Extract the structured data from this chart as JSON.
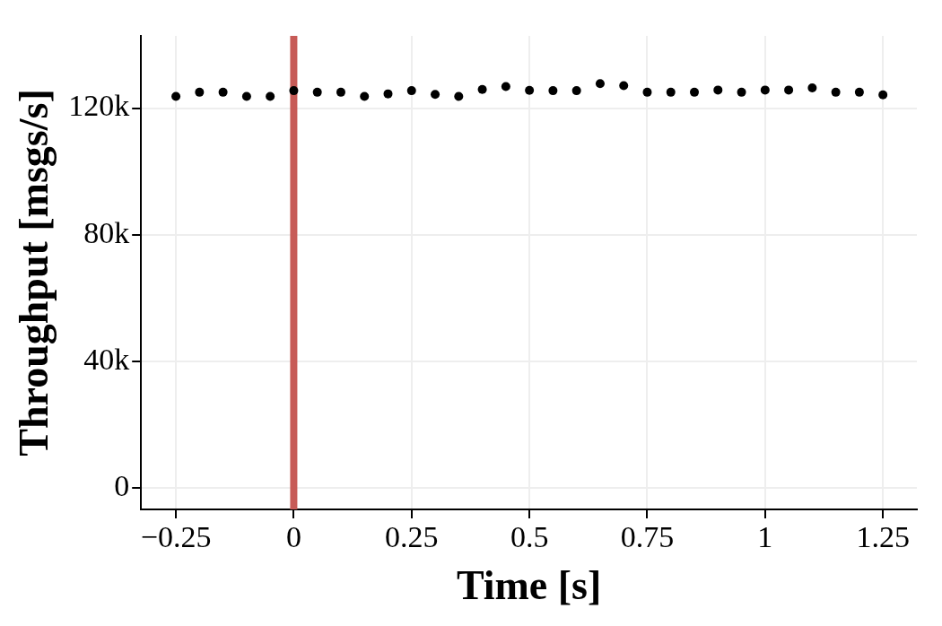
{
  "chart_data": {
    "type": "scatter",
    "xlabel": "Time [s]",
    "ylabel": "Throughput [msgs/s]",
    "x": [
      -0.25,
      -0.2,
      -0.15,
      -0.1,
      -0.05,
      0,
      0.05,
      0.1,
      0.15,
      0.2,
      0.25,
      0.3,
      0.35,
      0.4,
      0.45,
      0.5,
      0.55,
      0.6,
      0.65,
      0.7,
      0.75,
      0.8,
      0.85,
      0.9,
      0.95,
      1,
      1.05,
      1.1,
      1.15,
      1.2,
      1.25
    ],
    "series": [
      {
        "color": "#000000",
        "values": [
          123700,
          125000,
          125000,
          123700,
          123700,
          125500,
          125000,
          125000,
          123700,
          124500,
          125500,
          124300,
          123700,
          125900,
          126800,
          125600,
          125500,
          125500,
          127700,
          127100,
          125000,
          125000,
          125000,
          125700,
          125000,
          125700,
          125700,
          126400,
          125000,
          125000,
          124200
        ]
      }
    ],
    "xlim": [
      -0.324,
      1.322
    ],
    "xticks": [
      {
        "value": -0.25,
        "label": "−0.25"
      },
      0,
      0.25,
      0.5,
      0.75,
      1,
      1.25
    ],
    "ylim": [
      -6700,
      142800
    ],
    "yticks": [
      0,
      {
        "value": 40000,
        "label": "40k"
      },
      {
        "value": 80000,
        "label": "80k"
      },
      {
        "value": 120000,
        "label": "120k"
      }
    ],
    "ref_lines": [
      {
        "axis": "x",
        "value": 0,
        "color": "#c75b57"
      }
    ],
    "grid": true,
    "marker": "circle",
    "legend": false
  }
}
